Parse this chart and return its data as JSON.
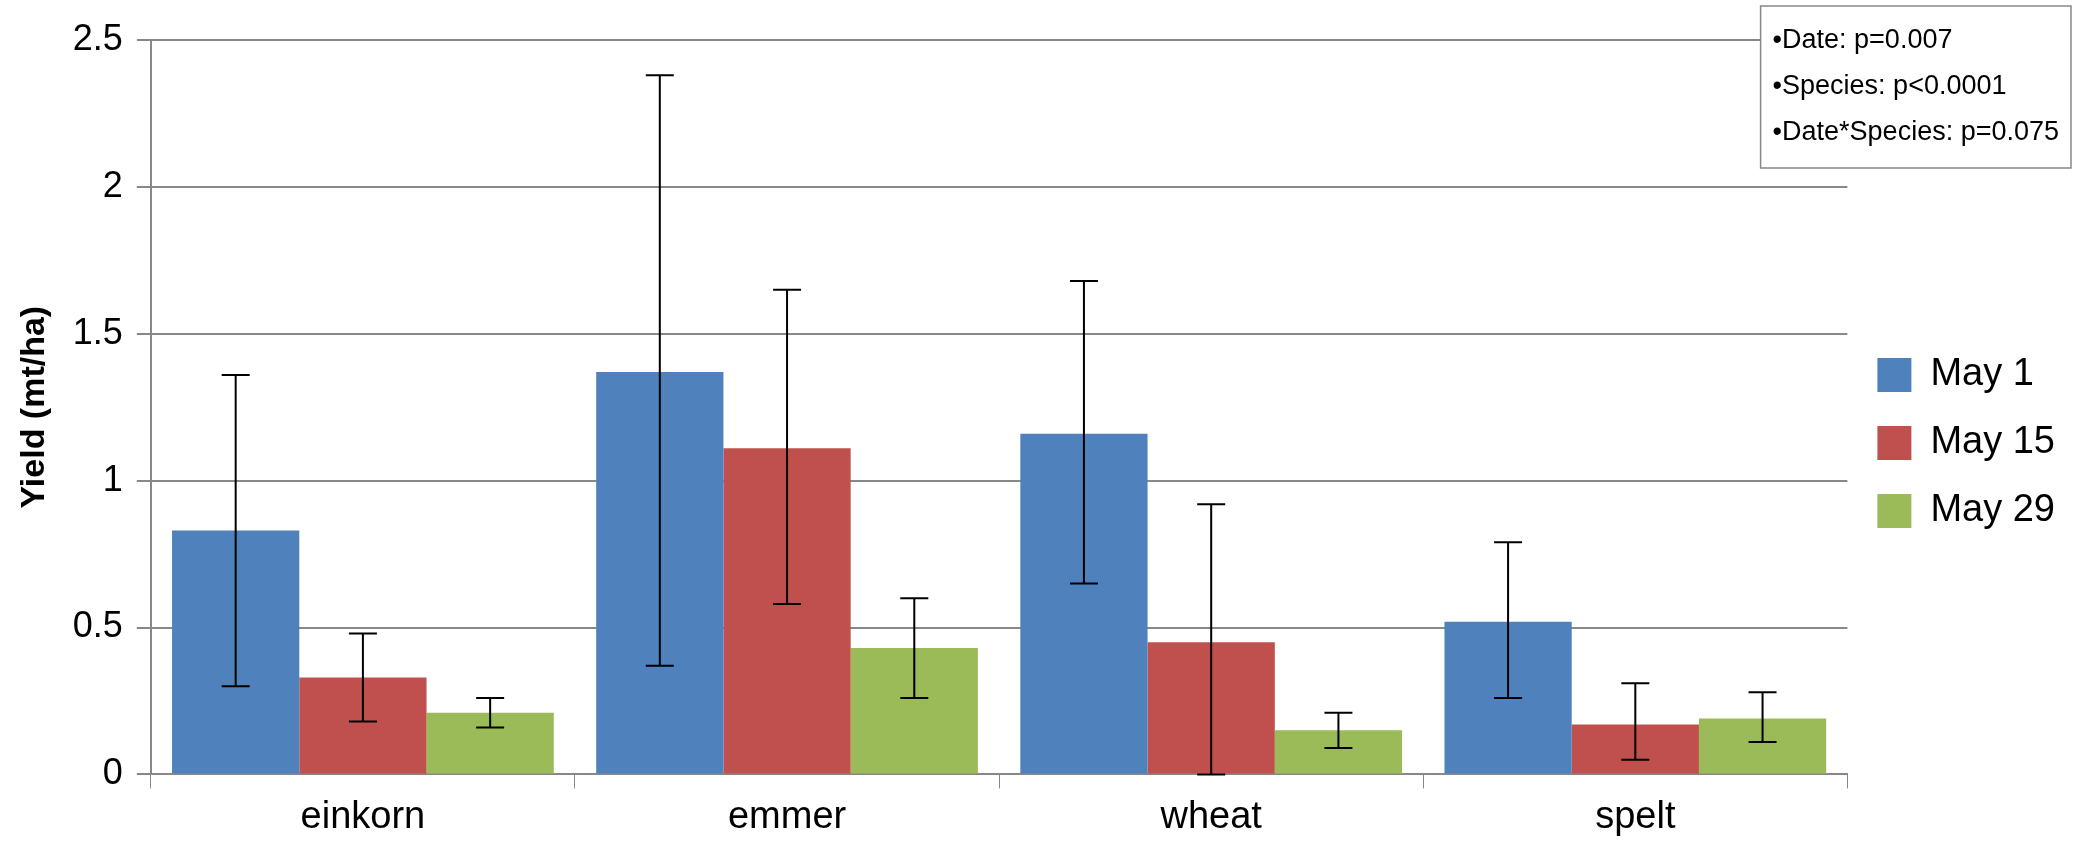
{
  "chart_data": {
    "type": "bar",
    "ylabel": "Yield (mt/ha)",
    "categories": [
      "einkorn",
      "emmer",
      "wheat",
      "spelt"
    ],
    "series": [
      {
        "name": "May 1",
        "color": "#4f81bd",
        "values": [
          0.83,
          1.37,
          1.16,
          0.52
        ],
        "errors": [
          [
            0.3,
            1.36
          ],
          [
            0.37,
            2.38
          ],
          [
            0.65,
            1.68
          ],
          [
            0.26,
            0.79
          ]
        ]
      },
      {
        "name": "May 15",
        "color": "#c0504d",
        "values": [
          0.33,
          1.11,
          0.45,
          0.17
        ],
        "errors": [
          [
            0.18,
            0.48
          ],
          [
            0.58,
            1.65
          ],
          [
            0,
            0.92
          ],
          [
            0.05,
            0.31
          ]
        ]
      },
      {
        "name": "May 29",
        "color": "#9bbb59",
        "values": [
          0.21,
          0.43,
          0.15,
          0.19
        ],
        "errors": [
          [
            0.16,
            0.26
          ],
          [
            0.26,
            0.6
          ],
          [
            0.09,
            0.21
          ],
          [
            0.11,
            0.28
          ]
        ]
      }
    ],
    "ylim": [
      0,
      2.5
    ],
    "yticks": [
      0,
      0.5,
      1,
      1.5,
      2,
      2.5
    ],
    "grid": "y",
    "legend": "right",
    "annotations": [
      "•Date: p=0.007",
      "•Species: p<0.0001",
      "•Date*Species: p=0.075"
    ]
  }
}
